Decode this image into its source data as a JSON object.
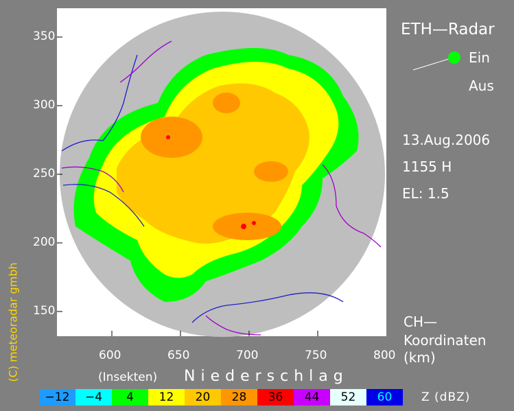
{
  "title": "ETH—Radar",
  "status": {
    "on_label": "Ein",
    "off_label": "Aus"
  },
  "date": "13.Aug.2006",
  "time": "1155 H",
  "elevation": "EL:  1.5",
  "coord_note": {
    "line1": "CH—",
    "line2": "Koordinaten",
    "line3": "(km)"
  },
  "copyright": "(C) meteoradar gmbh",
  "axes": {
    "x_ticks": [
      "600",
      "650",
      "700",
      "750",
      "800"
    ],
    "y_ticks": [
      "350",
      "300",
      "250",
      "200",
      "150"
    ]
  },
  "legend": {
    "insects_label": "(Insekten)",
    "precip_label": "Niederschlag",
    "unit_label": "Z  (dBZ)",
    "items": [
      {
        "value": "−12",
        "color": "#1e9bff",
        "text_color": "#000000"
      },
      {
        "value": "−4",
        "color": "#00ffff",
        "text_color": "#000000"
      },
      {
        "value": "4",
        "color": "#00ff00",
        "text_color": "#000000"
      },
      {
        "value": "12",
        "color": "#ffff00",
        "text_color": "#000000"
      },
      {
        "value": "20",
        "color": "#ffc800",
        "text_color": "#000000"
      },
      {
        "value": "28",
        "color": "#ff9600",
        "text_color": "#000000"
      },
      {
        "value": "36",
        "color": "#ff0000",
        "text_color": "#000000"
      },
      {
        "value": "44",
        "color": "#c800ff",
        "text_color": "#000000"
      },
      {
        "value": "52",
        "color": "#e6ffff",
        "text_color": "#000000"
      },
      {
        "value": "60",
        "color": "#0000e6",
        "text_color": "#00ffff"
      }
    ]
  },
  "colors": {
    "background": "#808080",
    "plot_background": "#ffffff",
    "radar_disk": "#bebebe",
    "on_indicator": "#00ff00",
    "copyright": "#ffd700"
  }
}
